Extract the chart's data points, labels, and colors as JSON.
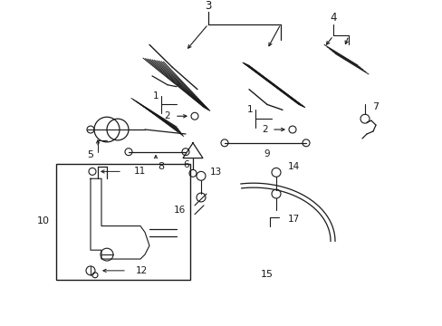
{
  "bg_color": "#ffffff",
  "line_color": "#1a1a1a",
  "fig_width": 4.89,
  "fig_height": 3.6,
  "dpi": 100,
  "wiper_hatch_color": "#555555",
  "box_color": "#000000"
}
